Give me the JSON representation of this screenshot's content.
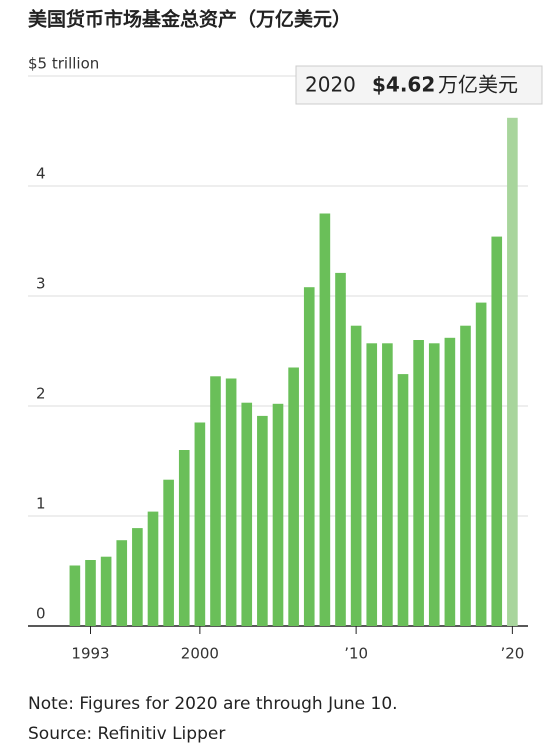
{
  "chart_data": {
    "type": "bar",
    "title": "美国货币市场基金总资产（万亿美元）",
    "x": [
      1992,
      1993,
      1994,
      1995,
      1996,
      1997,
      1998,
      1999,
      2000,
      2001,
      2002,
      2003,
      2004,
      2005,
      2006,
      2007,
      2008,
      2009,
      2010,
      2011,
      2012,
      2013,
      2014,
      2015,
      2016,
      2017,
      2018,
      2019,
      2020
    ],
    "values": [
      0.55,
      0.6,
      0.63,
      0.78,
      0.89,
      1.04,
      1.33,
      1.6,
      1.85,
      2.27,
      2.25,
      2.03,
      1.91,
      2.02,
      2.35,
      3.08,
      3.75,
      3.21,
      2.73,
      2.57,
      2.57,
      2.29,
      2.6,
      2.57,
      2.62,
      2.73,
      2.94,
      3.54,
      4.62
    ],
    "colors": [
      "#6abf59",
      "#6abf59",
      "#6abf59",
      "#6abf59",
      "#6abf59",
      "#6abf59",
      "#6abf59",
      "#6abf59",
      "#6abf59",
      "#6abf59",
      "#6abf59",
      "#6abf59",
      "#6abf59",
      "#6abf59",
      "#6abf59",
      "#6abf59",
      "#6abf59",
      "#6abf59",
      "#6abf59",
      "#6abf59",
      "#6abf59",
      "#6abf59",
      "#6abf59",
      "#6abf59",
      "#6abf59",
      "#6abf59",
      "#6abf59",
      "#6abf59",
      "#a8d59c"
    ],
    "xlim": [
      1989,
      2021
    ],
    "xticks": [
      1993,
      2000,
      {
        "value": 2010,
        "label": "’10"
      },
      {
        "value": 2020,
        "label": "’20"
      }
    ],
    "ylim": [
      0,
      5
    ],
    "yticks": [
      0,
      1,
      2,
      3,
      4,
      {
        "value": 5,
        "label": "$5 trillion"
      }
    ],
    "grid": true,
    "annotation": {
      "year": "2020",
      "value_label": "$4.62",
      "unit": "万亿美元"
    },
    "note": "Note: Figures for 2020 are through June 10.",
    "source": "Source: Refinitiv Lipper"
  }
}
